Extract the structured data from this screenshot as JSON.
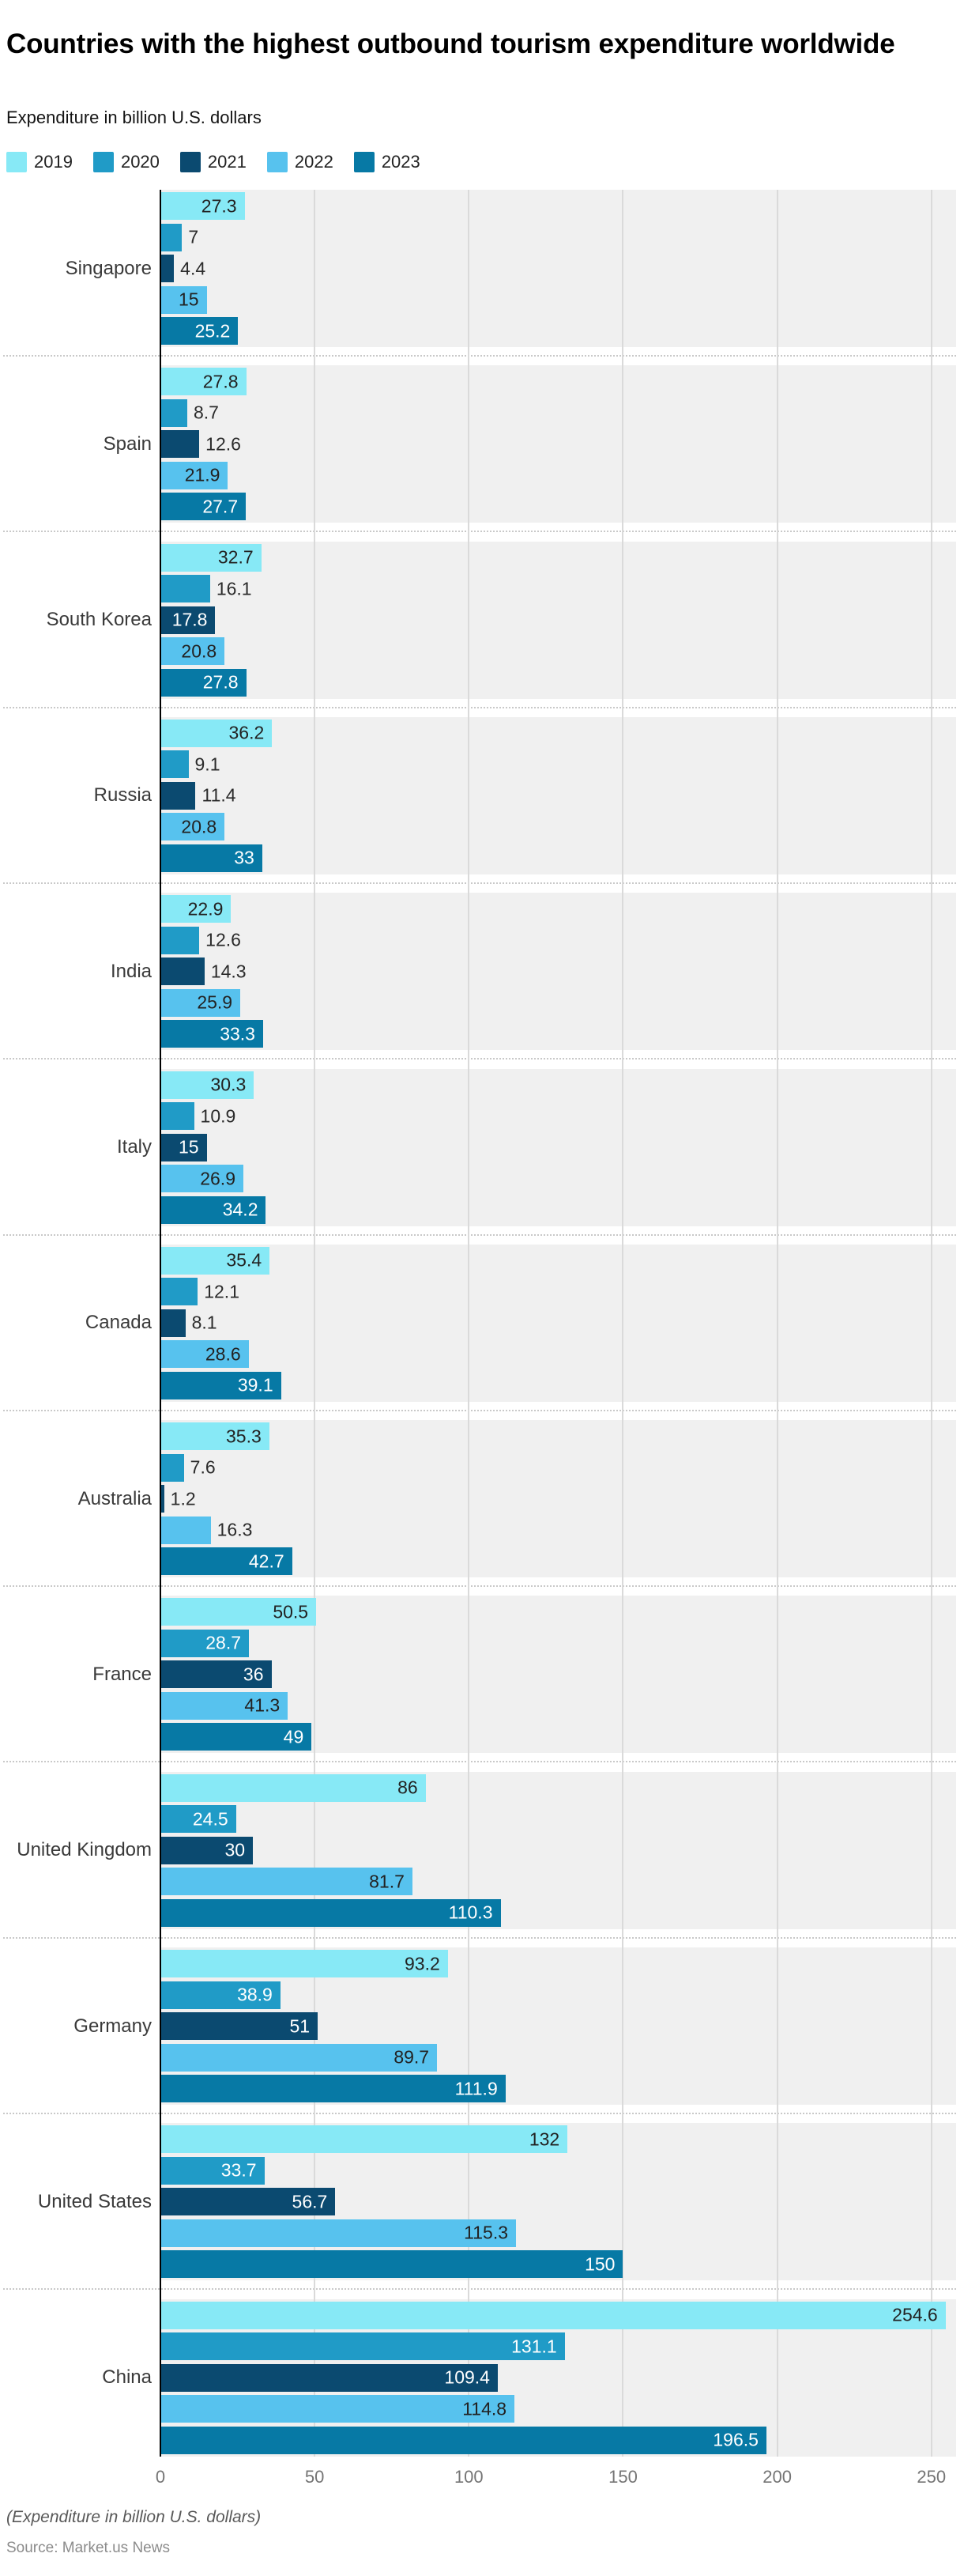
{
  "title": "Countries with the highest outbound tourism expenditure worldwide",
  "subtitle": "Expenditure in billion U.S. dollars",
  "legend": [
    {
      "label": "2019",
      "color": "#87E9F6"
    },
    {
      "label": "2020",
      "color": "#209BC7"
    },
    {
      "label": "2021",
      "color": "#0B4A70"
    },
    {
      "label": "2022",
      "color": "#57C2EE"
    },
    {
      "label": "2023",
      "color": "#0779A5"
    }
  ],
  "chart_data": {
    "type": "bar",
    "orientation": "horizontal",
    "title": "Countries with the highest outbound tourism expenditure worldwide",
    "xlabel": "Expenditure in billion U.S. dollars",
    "ylabel": "",
    "grid": true,
    "legend_position": "top",
    "x_ticks": [
      0,
      50,
      100,
      150,
      200,
      250
    ],
    "xlim": [
      0,
      258
    ],
    "categories": [
      "Singapore",
      "Spain",
      "South Korea",
      "Russia",
      "India",
      "Italy",
      "Canada",
      "Australia",
      "France",
      "United Kingdom",
      "Germany",
      "United States",
      "China"
    ],
    "series": [
      {
        "name": "2019",
        "color": "#87E9F6",
        "values": [
          27.3,
          27.8,
          32.7,
          36.2,
          22.9,
          30.3,
          35.4,
          35.3,
          50.5,
          86,
          93.2,
          132,
          254.6
        ]
      },
      {
        "name": "2020",
        "color": "#209BC7",
        "values": [
          7,
          8.7,
          16.1,
          9.1,
          12.6,
          10.9,
          12.1,
          7.6,
          28.7,
          24.5,
          38.9,
          33.7,
          131.1
        ]
      },
      {
        "name": "2021",
        "color": "#0B4A70",
        "values": [
          4.4,
          12.6,
          17.8,
          11.4,
          14.3,
          15,
          8.1,
          1.2,
          36,
          30,
          51,
          56.7,
          109.4
        ]
      },
      {
        "name": "2022",
        "color": "#57C2EE",
        "values": [
          15,
          21.9,
          20.8,
          20.8,
          25.9,
          26.9,
          28.6,
          16.3,
          41.3,
          81.7,
          89.7,
          115.3,
          114.8
        ]
      },
      {
        "name": "2023",
        "color": "#0779A5",
        "values": [
          25.2,
          27.7,
          27.8,
          33,
          33.3,
          34.2,
          39.1,
          42.7,
          49,
          110.3,
          111.9,
          150,
          196.5
        ]
      }
    ]
  },
  "footer": {
    "note": "(Expenditure in billion U.S. dollars)",
    "source": "Source: Market.us News"
  }
}
